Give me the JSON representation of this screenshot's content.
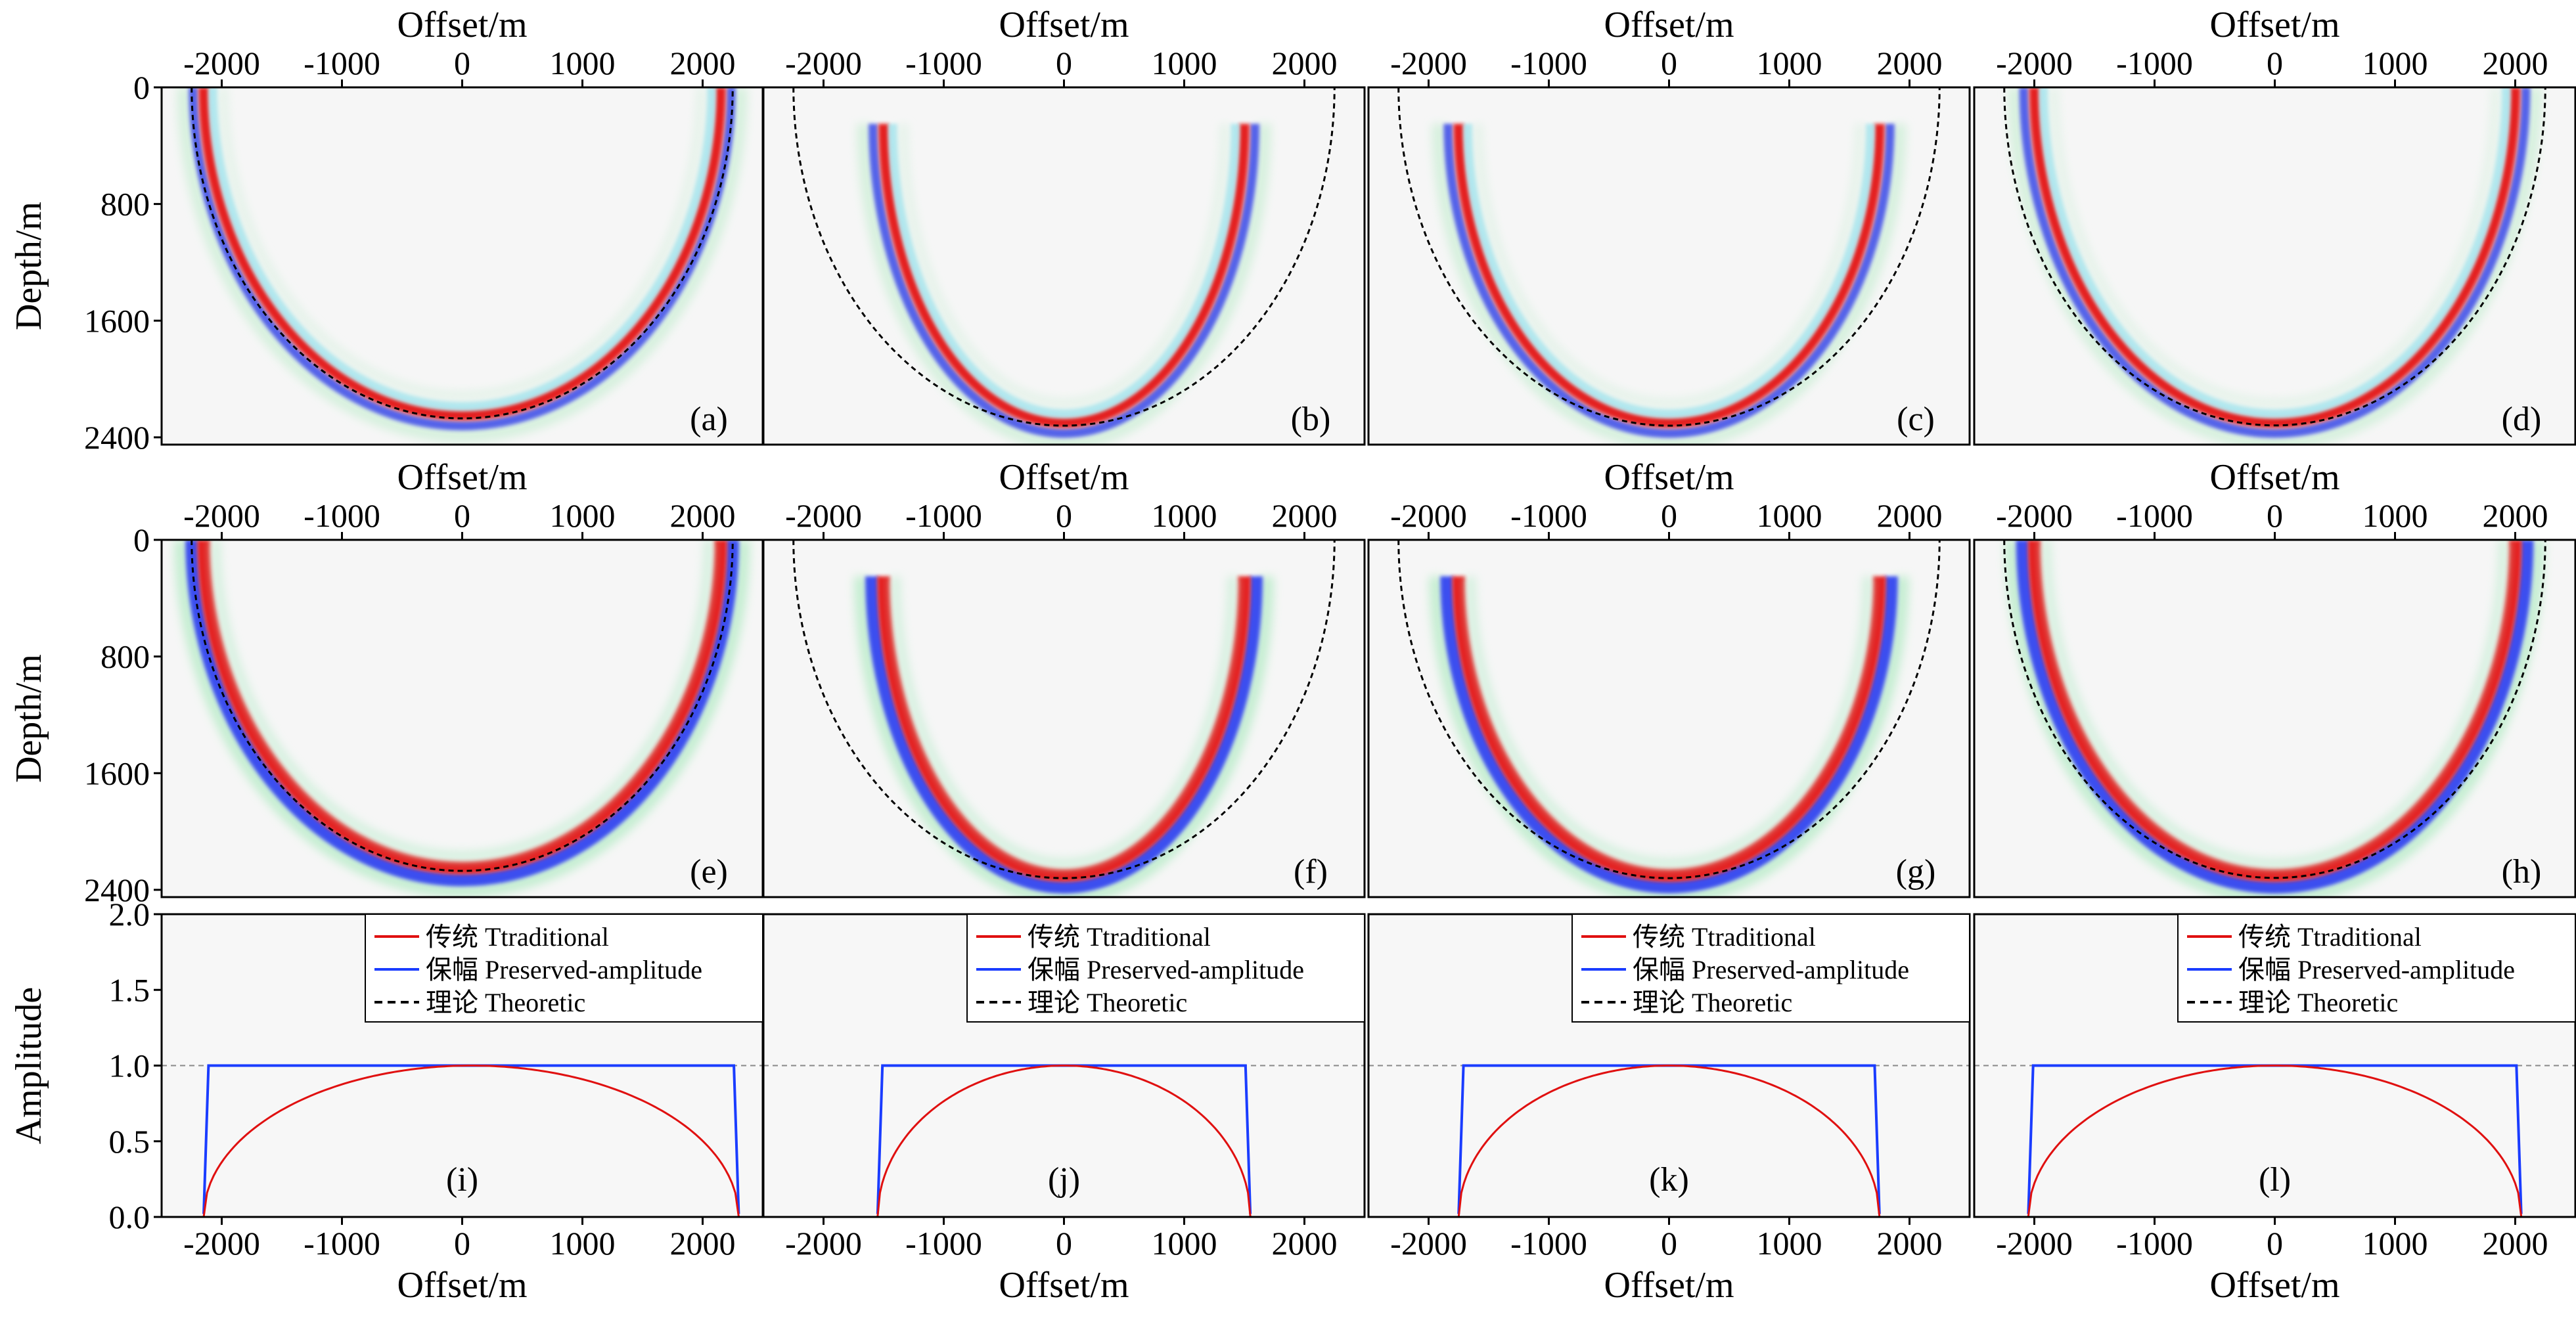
{
  "chart_data": {
    "type": "figure-grid",
    "labels": {
      "offset_axis": "Offset/m",
      "depth_axis": "Depth/m",
      "amplitude_axis": "Amplitude"
    },
    "colors": {
      "traditional": "#e01010",
      "preserved": "#1a3cff",
      "theoretic": "#000000",
      "reference": "#888888"
    },
    "image_panels": [
      {
        "label": "(a)",
        "row": "traditional",
        "wavefront_half_width": 2150,
        "edge_depth": 0,
        "reflector_depth": 2250
      },
      {
        "label": "(b)",
        "row": "traditional",
        "wavefront_half_width": 1500,
        "edge_depth": 250,
        "reflector_depth": 2300
      },
      {
        "label": "(c)",
        "row": "traditional",
        "wavefront_half_width": 1750,
        "edge_depth": 250,
        "reflector_depth": 2300
      },
      {
        "label": "(d)",
        "row": "traditional",
        "wavefront_half_width": 2000,
        "edge_depth": 0,
        "reflector_depth": 2300
      },
      {
        "label": "(e)",
        "row": "preserved",
        "wavefront_half_width": 2150,
        "edge_depth": 0,
        "reflector_depth": 2250
      },
      {
        "label": "(f)",
        "row": "preserved",
        "wavefront_half_width": 1500,
        "edge_depth": 250,
        "reflector_depth": 2300
      },
      {
        "label": "(g)",
        "row": "preserved",
        "wavefront_half_width": 1750,
        "edge_depth": 250,
        "reflector_depth": 2300
      },
      {
        "label": "(h)",
        "row": "preserved",
        "wavefront_half_width": 2000,
        "edge_depth": 0,
        "reflector_depth": 2300
      }
    ],
    "image_axes": {
      "xlabel": "Offset/m",
      "ylabel": "Depth/m",
      "xlim": [
        -2500,
        2500
      ],
      "ylim": [
        0,
        2450
      ],
      "xticks": [
        -2000,
        -1000,
        0,
        1000,
        2000
      ],
      "yticks": [
        0,
        800,
        1600,
        2400
      ],
      "theoretic_half_width": 2250
    },
    "line_panels": [
      {
        "label": "(i)",
        "x_start": -2150,
        "x_end": 2300
      },
      {
        "label": "(j)",
        "x_start": -1550,
        "x_end": 1550
      },
      {
        "label": "(k)",
        "x_start": -1750,
        "x_end": 1750
      },
      {
        "label": "(l)",
        "x_start": -2050,
        "x_end": 2050
      }
    ],
    "line_axes": {
      "xlabel": "Offset/m",
      "ylabel": "Amplitude",
      "xlim": [
        -2500,
        2500
      ],
      "ylim": [
        0,
        2.0
      ],
      "xticks": [
        -2000,
        -1000,
        0,
        1000,
        2000
      ],
      "yticks": [
        0.0,
        0.5,
        1.0,
        1.5,
        2.0
      ],
      "ytick_labels": [
        "0.0",
        "0.5",
        "1.0",
        "1.5",
        "2.0"
      ],
      "reference_line": 1.0
    },
    "series": [
      {
        "name": "传统  Ttraditional",
        "key": "traditional",
        "style": "solid"
      },
      {
        "name": "保幅  Preserved-amplitude",
        "key": "preserved",
        "style": "solid"
      },
      {
        "name": "理论  Theoretic",
        "key": "theoretic",
        "style": "dashed"
      }
    ],
    "legend_position": "top-right"
  }
}
